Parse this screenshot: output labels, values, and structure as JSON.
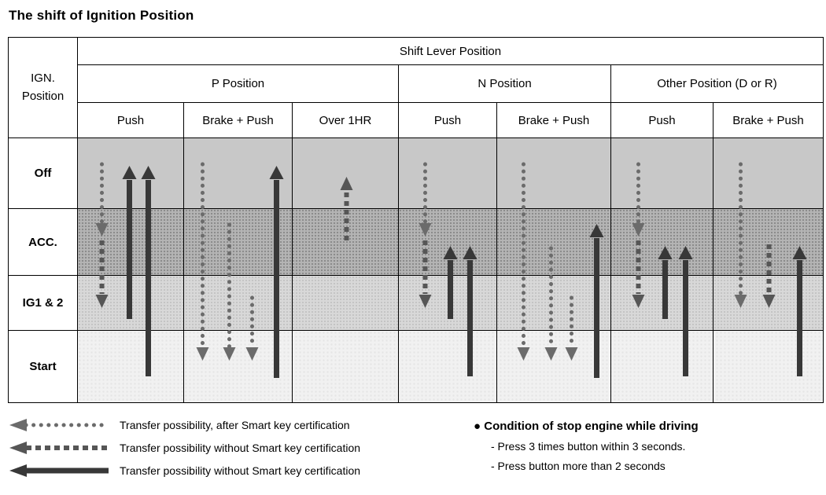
{
  "title": "The shift of Ignition Position",
  "table": {
    "corner": [
      "IGN.",
      "Position"
    ],
    "top_header": "Shift Lever Position",
    "groups": [
      {
        "label": "P Position",
        "cols": [
          "Push",
          "Brake + Push",
          "Over 1HR"
        ]
      },
      {
        "label": "N Position",
        "cols": [
          "Push",
          "Brake + Push"
        ]
      },
      {
        "label": "Other Position (D or R)",
        "cols": [
          "Push",
          "Brake + Push"
        ]
      }
    ],
    "row_labels": [
      "Off",
      "ACC.",
      "IG1 & 2",
      "Start"
    ]
  },
  "colors": {
    "band_off": "#c8c8c8",
    "band_acc": "#b4b4b4",
    "band_ig1_2": "#d8d8d8",
    "band_start": "#f1f1f1",
    "arrow_dotted": "#6b6b6b",
    "arrow_dashed": "#565656",
    "arrow_solid": "#383838",
    "border": "#000000"
  },
  "diagram": {
    "row_bands": [
      "Off",
      "ACC.",
      "IG1 & 2",
      "Start"
    ],
    "columns": [
      {
        "name": "p-push",
        "arrows": [
          {
            "style": "dotted",
            "x": 0.22,
            "from": 33,
            "to": 122
          },
          {
            "style": "dashed",
            "x": 0.22,
            "from": 130,
            "to": 213
          },
          {
            "style": "solid",
            "x": 0.48,
            "from": 230,
            "to": 38
          },
          {
            "style": "solid",
            "x": 0.66,
            "from": 303,
            "to": 38
          }
        ]
      },
      {
        "name": "p-brake-push",
        "arrows": [
          {
            "style": "dotted",
            "x": 0.17,
            "from": 33,
            "to": 280
          },
          {
            "style": "dotted",
            "x": 0.41,
            "from": 110,
            "to": 280
          },
          {
            "style": "dotted",
            "x": 0.62,
            "from": 203,
            "to": 280
          },
          {
            "style": "solid",
            "x": 0.85,
            "from": 305,
            "to": 38
          }
        ]
      },
      {
        "name": "p-over-1hr",
        "arrows": [
          {
            "style": "dashed",
            "x": 0.5,
            "from": 130,
            "to": 52
          }
        ]
      },
      {
        "name": "n-push",
        "arrows": [
          {
            "style": "dotted",
            "x": 0.26,
            "from": 33,
            "to": 122
          },
          {
            "style": "dashed",
            "x": 0.26,
            "from": 130,
            "to": 213
          },
          {
            "style": "solid",
            "x": 0.52,
            "from": 230,
            "to": 140
          },
          {
            "style": "solid",
            "x": 0.72,
            "from": 303,
            "to": 140
          }
        ]
      },
      {
        "name": "n-brake-push",
        "arrows": [
          {
            "style": "dotted",
            "x": 0.23,
            "from": 33,
            "to": 280
          },
          {
            "style": "dotted",
            "x": 0.47,
            "from": 140,
            "to": 280
          },
          {
            "style": "dotted",
            "x": 0.65,
            "from": 203,
            "to": 280
          },
          {
            "style": "solid",
            "x": 0.87,
            "from": 305,
            "to": 112
          }
        ]
      },
      {
        "name": "other-push",
        "arrows": [
          {
            "style": "dotted",
            "x": 0.26,
            "from": 33,
            "to": 122
          },
          {
            "style": "dashed",
            "x": 0.26,
            "from": 130,
            "to": 213
          },
          {
            "style": "solid",
            "x": 0.52,
            "from": 230,
            "to": 140
          },
          {
            "style": "solid",
            "x": 0.72,
            "from": 303,
            "to": 140
          }
        ]
      },
      {
        "name": "other-brake-push",
        "arrows": [
          {
            "style": "dotted",
            "x": 0.24,
            "from": 33,
            "to": 213
          },
          {
            "style": "dashed",
            "x": 0.5,
            "from": 135,
            "to": 213
          },
          {
            "style": "solid",
            "x": 0.78,
            "from": 303,
            "to": 140
          }
        ]
      }
    ]
  },
  "legend": {
    "items": [
      {
        "style": "dotted",
        "label": "Transfer possibility, after Smart key certification"
      },
      {
        "style": "dashed",
        "label": "Transfer possibility without Smart key certification"
      },
      {
        "style": "solid",
        "label": "Transfer possibility without Smart key certification"
      }
    ],
    "bullet": "●",
    "note_title": "Condition of stop engine while driving",
    "notes": [
      "- Press 3 times button within 3 seconds.",
      "- Press button more than 2 seconds"
    ]
  }
}
